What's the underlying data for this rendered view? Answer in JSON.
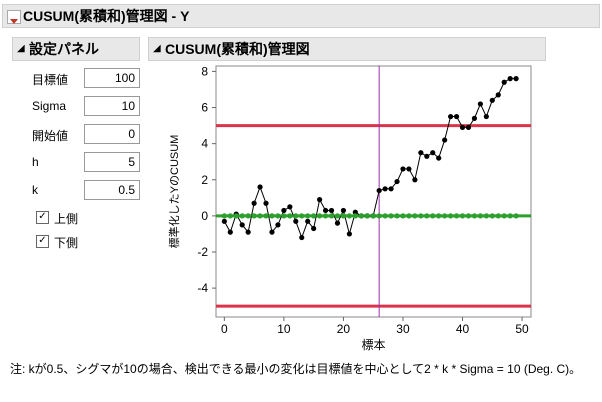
{
  "window_title": "CUSUM(累積和)管理図 - Y",
  "settings": {
    "title": "設定パネル",
    "fields": [
      {
        "label": "目標値",
        "value": 100
      },
      {
        "label": "Sigma",
        "value": 10
      },
      {
        "label": "開始値",
        "value": 0
      },
      {
        "label": "h",
        "value": 5
      },
      {
        "label": "k",
        "value": 0.5
      }
    ],
    "checkboxes": [
      {
        "label": "上側",
        "checked": true
      },
      {
        "label": "下側",
        "checked": true
      }
    ]
  },
  "chart_title": "CUSUM(累積和)管理図",
  "chart_data": {
    "type": "line",
    "x_label": "標本",
    "y_label": "標準化したYのCUSUM",
    "x": [
      0,
      1,
      2,
      3,
      4,
      5,
      6,
      7,
      8,
      9,
      10,
      11,
      12,
      13,
      14,
      15,
      16,
      17,
      18,
      19,
      20,
      21,
      22,
      23,
      24,
      25,
      26,
      27,
      28,
      29,
      30,
      31,
      32,
      33,
      34,
      35,
      36,
      37,
      38,
      39,
      40,
      41,
      42,
      43,
      44,
      45,
      46,
      47,
      48,
      49
    ],
    "series": [
      {
        "color": "#000000",
        "values": [
          -0.3,
          -0.9,
          0.1,
          -0.5,
          -0.9,
          0.7,
          1.6,
          0.7,
          -0.9,
          -0.5,
          0.3,
          0.5,
          -0.3,
          -1.2,
          -0.3,
          -0.7,
          0.9,
          0.3,
          0.3,
          -0.4,
          0.3,
          -1.0,
          0.2,
          0,
          0,
          0,
          1.4,
          1.5,
          1.5,
          1.9,
          2.6,
          2.6,
          2.0,
          3.5,
          3.3,
          3.5,
          3.2,
          4.2,
          5.5,
          5.5,
          4.9,
          4.9,
          5.4,
          6.2,
          5.5,
          6.4,
          6.7,
          7.4,
          7.6,
          7.6
        ]
      },
      {
        "color": "#2ca02c",
        "values": [
          0,
          0,
          0,
          0,
          0,
          0,
          0,
          0,
          0,
          0,
          0,
          0,
          0,
          0,
          0,
          0,
          0,
          0,
          0,
          0,
          0,
          0,
          0,
          0,
          0,
          0,
          0,
          0,
          0,
          0,
          0,
          0,
          0,
          0,
          0,
          0,
          0,
          0,
          0,
          0,
          0,
          0,
          0,
          0,
          0,
          0,
          0,
          0,
          0,
          0
        ]
      }
    ],
    "center": 0,
    "center_color": "#2ca02c",
    "limits": [
      5,
      -5
    ],
    "limit_color": "#d9344a",
    "reference_x": 26,
    "reference_color": "#9b30b0",
    "xlim": [
      -1.4,
      51.5
    ],
    "ylim": [
      -5.6,
      8.3
    ],
    "xticks": [
      0,
      10,
      20,
      30,
      40,
      50
    ],
    "yticks": [
      -4,
      -2,
      0,
      2,
      4,
      6,
      8
    ]
  },
  "note": "注: kが0.5、シグマが10の場合、検出できる最小の変化は目標値を中心として2 * k * Sigma = 10 (Deg. C)。"
}
